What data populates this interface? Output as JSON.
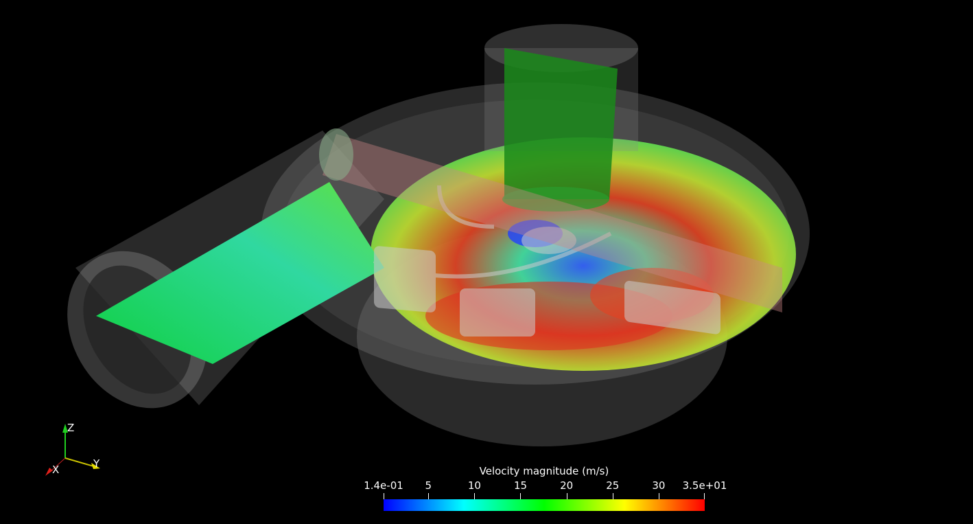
{
  "colorbar": {
    "title": "Velocity magnitude (m/s)",
    "range": [
      0.14,
      35
    ],
    "ticks": [
      {
        "label": "1.4e-01",
        "value": 0.14
      },
      {
        "label": "5",
        "value": 5
      },
      {
        "label": "10",
        "value": 10
      },
      {
        "label": "15",
        "value": 15
      },
      {
        "label": "20",
        "value": 20
      },
      {
        "label": "25",
        "value": 25
      },
      {
        "label": "30",
        "value": 30
      },
      {
        "label": "3.5e+01",
        "value": 35
      }
    ],
    "colormap": [
      "#0000ff",
      "#00ffff",
      "#00ff00",
      "#ffff00",
      "#ff0000"
    ]
  },
  "axes": {
    "x_label": "X",
    "y_label": "Y",
    "z_label": "Z",
    "x_color": "#e0201a",
    "y_color": "#e8e000",
    "z_color": "#20d020"
  },
  "background": "#000000"
}
